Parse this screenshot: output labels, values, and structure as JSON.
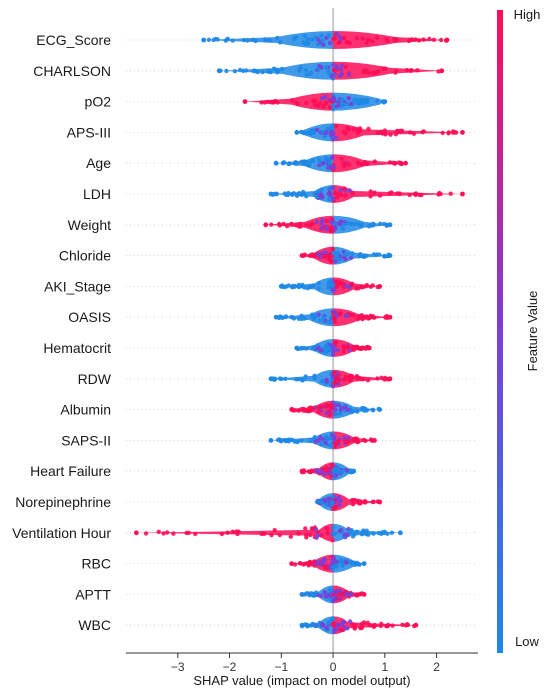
{
  "chart_data": {
    "type": "scatter",
    "subtype": "shap-beeswarm",
    "title": "",
    "xlabel": "SHAP value (impact on model output)",
    "ylabel": "",
    "xlim": [
      -4,
      2.8
    ],
    "xticks": [
      -3,
      -2,
      -1,
      0,
      1,
      2
    ],
    "grid": false,
    "colorbar": {
      "label": "Feature Value",
      "high_label": "High",
      "low_label": "Low",
      "low_color": "#1e88e5",
      "high_color": "#ff0d57",
      "mid_color": "#7b3fd8"
    },
    "features": [
      {
        "name": "ECG_Score",
        "min": -2.5,
        "max": 2.2,
        "neg_color": "low",
        "pos_color": "high",
        "core": 1.2
      },
      {
        "name": "CHARLSON",
        "min": -2.2,
        "max": 2.1,
        "neg_color": "low",
        "pos_color": "high",
        "core": 1.1
      },
      {
        "name": "pO2",
        "min": -1.7,
        "max": 1.0,
        "neg_color": "high",
        "pos_color": "low",
        "core": 0.9
      },
      {
        "name": "APS-III",
        "min": -0.7,
        "max": 2.5,
        "neg_color": "low",
        "pos_color": "high",
        "core": 0.6
      },
      {
        "name": "Age",
        "min": -1.1,
        "max": 1.4,
        "neg_color": "low",
        "pos_color": "high",
        "core": 0.6
      },
      {
        "name": "LDH",
        "min": -1.2,
        "max": 2.5,
        "neg_color": "low",
        "pos_color": "high",
        "core": 0.4
      },
      {
        "name": "Weight",
        "min": -1.3,
        "max": 1.1,
        "neg_color": "high",
        "pos_color": "low",
        "core": 0.6
      },
      {
        "name": "Chloride",
        "min": -0.6,
        "max": 1.1,
        "neg_color": "high",
        "pos_color": "low",
        "core": 0.4
      },
      {
        "name": "AKI_Stage",
        "min": -1.0,
        "max": 0.9,
        "neg_color": "low",
        "pos_color": "high",
        "core": 0.4
      },
      {
        "name": "OASIS",
        "min": -1.1,
        "max": 1.1,
        "neg_color": "low",
        "pos_color": "high",
        "core": 0.5
      },
      {
        "name": "Hematocrit",
        "min": -0.7,
        "max": 0.7,
        "neg_color": "low",
        "pos_color": "high",
        "core": 0.4
      },
      {
        "name": "RDW",
        "min": -1.2,
        "max": 1.1,
        "neg_color": "low",
        "pos_color": "high",
        "core": 0.4
      },
      {
        "name": "Albumin",
        "min": -0.8,
        "max": 0.9,
        "neg_color": "high",
        "pos_color": "low",
        "core": 0.4
      },
      {
        "name": "SAPS-II",
        "min": -1.2,
        "max": 0.8,
        "neg_color": "low",
        "pos_color": "high",
        "core": 0.4
      },
      {
        "name": "Heart Failure",
        "min": -0.6,
        "max": 0.4,
        "neg_color": "high",
        "pos_color": "low",
        "core": 0.3
      },
      {
        "name": "Norepinephrine",
        "min": -0.3,
        "max": 0.9,
        "neg_color": "low",
        "pos_color": "high",
        "core": 0.3
      },
      {
        "name": "Ventilation Hour",
        "min": -3.8,
        "max": 1.3,
        "neg_color": "high",
        "pos_color": "low",
        "core": 0.3
      },
      {
        "name": "RBC",
        "min": -0.8,
        "max": 0.6,
        "neg_color": "high",
        "pos_color": "low",
        "core": 0.4
      },
      {
        "name": "APTT",
        "min": -0.6,
        "max": 0.6,
        "neg_color": "low",
        "pos_color": "high",
        "core": 0.3
      },
      {
        "name": "WBC",
        "min": -0.6,
        "max": 1.6,
        "neg_color": "low",
        "pos_color": "high",
        "core": 0.3
      }
    ]
  }
}
